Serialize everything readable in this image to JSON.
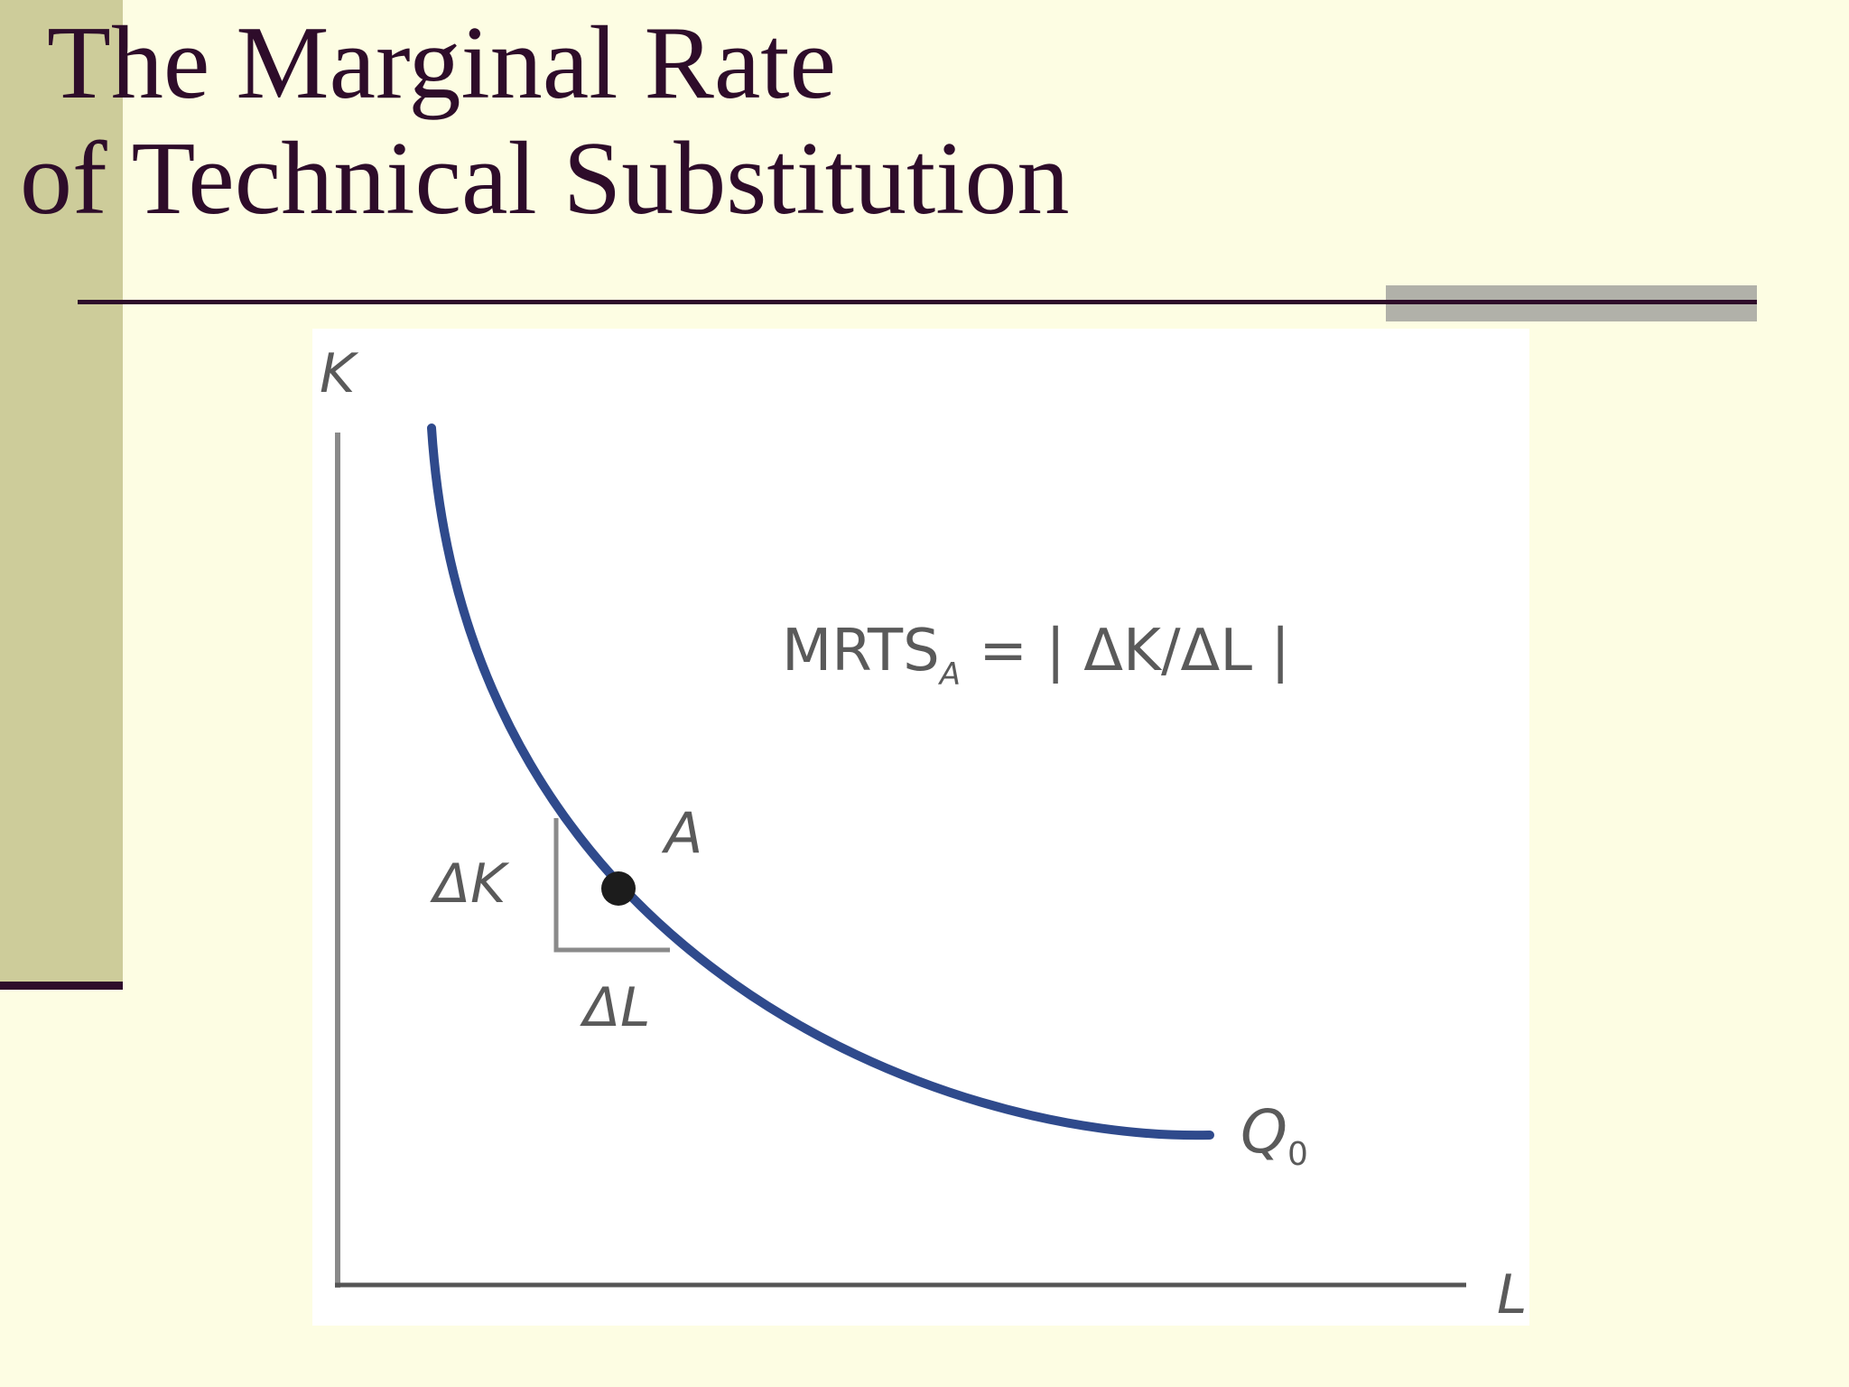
{
  "title": {
    "line1": "The Marginal Rate",
    "line2": "of Technical Substitution"
  },
  "diagram": {
    "y_axis_label": "K",
    "x_axis_label": "L",
    "curve_label": "Q",
    "curve_label_sub": "0",
    "point_label": "A",
    "delta_k_label": "ΔK",
    "delta_l_label": "ΔL",
    "formula_prefix": "MRTS",
    "formula_sub": "A",
    "formula_rest": " = | ΔK/ΔL |",
    "colors": {
      "curve": "#2f4a8c",
      "axes": "#8a8a8a",
      "point": "#1c1c1c"
    }
  }
}
